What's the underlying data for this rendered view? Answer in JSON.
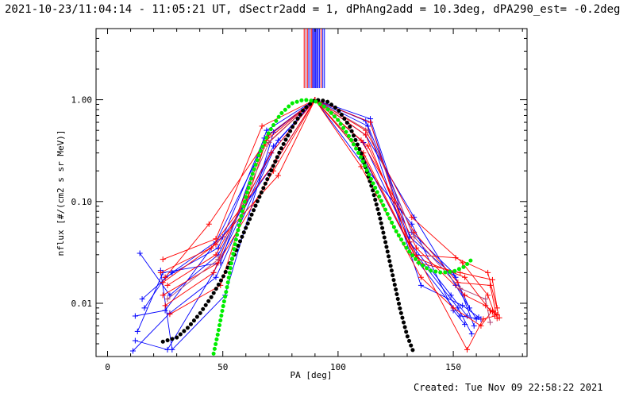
{
  "header": {
    "title": "2021-10-23/11:04:14 - 11:05:21 UT, dSectr2add = 1, dPhAng2add = 10.3deg, dPA290_est= -0.2deg"
  },
  "footer": {
    "created": "Created: Tue Nov 09 22:58:22 2021"
  },
  "chart_data": {
    "type": "line",
    "title": "2021-10-23/11:04:14 - 11:05:21 UT, dSectr2add = 1, dPhAng2add = 10.3deg, dPA290_est= -0.2deg",
    "xlabel": "PA [deg]",
    "ylabel": "nflux [#/(cm2 s sr MeV)]",
    "xlim": [
      -5,
      182
    ],
    "ylim": [
      0.003,
      5
    ],
    "yscale": "log",
    "x_ticks": [
      0,
      50,
      100,
      150
    ],
    "x_tick_labels": [
      "0",
      "50",
      "100",
      "150"
    ],
    "y_ticks": [
      0.01,
      0.1,
      1.0
    ],
    "y_tick_labels": [
      "0.01",
      "0.10",
      "1.00"
    ],
    "grid": false,
    "colors": {
      "blue": "#0000ff",
      "red": "#ff0000",
      "purple": "#b04070",
      "green": "#00ee00",
      "black": "#000000"
    },
    "vertical_lines": {
      "y_from": 1.3,
      "y_to": 5,
      "lines": [
        {
          "x": 85.3,
          "color": "#ff0000"
        },
        {
          "x": 86.0,
          "color": "#b04070"
        },
        {
          "x": 86.7,
          "color": "#ff0000"
        },
        {
          "x": 87.3,
          "color": "#0000ff"
        },
        {
          "x": 88.0,
          "color": "#b04070"
        },
        {
          "x": 88.6,
          "color": "#ff0000"
        },
        {
          "x": 89.0,
          "color": "#0000ff"
        },
        {
          "x": 89.5,
          "color": "#0000ff"
        },
        {
          "x": 90.0,
          "color": "#0000ff"
        },
        {
          "x": 90.4,
          "color": "#0000ff"
        },
        {
          "x": 90.9,
          "color": "#0000ff"
        },
        {
          "x": 91.4,
          "color": "#0000ff"
        },
        {
          "x": 92.0,
          "color": "#0000ff"
        },
        {
          "x": 92.7,
          "color": "#ff0000"
        },
        {
          "x": 93.4,
          "color": "#0000ff"
        },
        {
          "x": 94.1,
          "color": "#0000ff"
        }
      ]
    },
    "series": [
      {
        "color": "#0000ff",
        "x": [
          12,
          25,
          47,
          70,
          90,
          113,
          132,
          150,
          157
        ],
        "y": [
          0.0075,
          0.0085,
          0.04,
          0.45,
          1.0,
          0.55,
          0.05,
          0.02,
          0.009
        ]
      },
      {
        "color": "#0000ff",
        "x": [
          14,
          27,
          48,
          72,
          90,
          112,
          133,
          151,
          160
        ],
        "y": [
          0.031,
          0.012,
          0.03,
          0.35,
          1.0,
          0.45,
          0.07,
          0.015,
          0.007
        ]
      },
      {
        "color": "#0000ff",
        "x": [
          13,
          24,
          49,
          69,
          90,
          114,
          131,
          149,
          156
        ],
        "y": [
          0.0053,
          0.02,
          0.025,
          0.5,
          1.0,
          0.6,
          0.04,
          0.012,
          0.0075
        ]
      },
      {
        "color": "#0000ff",
        "x": [
          12,
          26,
          46,
          71,
          90,
          111,
          134,
          152,
          158
        ],
        "y": [
          0.0043,
          0.0035,
          0.02,
          0.3,
          1.0,
          0.38,
          0.03,
          0.009,
          0.005
        ]
      },
      {
        "color": "#0000ff",
        "x": [
          15,
          28,
          50,
          73,
          90,
          110,
          135,
          153,
          162
        ],
        "y": [
          0.011,
          0.02,
          0.045,
          0.25,
          1.0,
          0.3,
          0.025,
          0.0075,
          0.007
        ]
      },
      {
        "color": "#0000ff",
        "x": [
          11,
          27,
          47,
          74,
          90,
          113,
          132,
          150,
          155
        ],
        "y": [
          0.0034,
          0.008,
          0.018,
          0.4,
          1.0,
          0.2,
          0.06,
          0.0085,
          0.0062
        ]
      },
      {
        "color": "#0000ff",
        "x": [
          16,
          25,
          48,
          68,
          90,
          114,
          131,
          151,
          159
        ],
        "y": [
          0.009,
          0.018,
          0.035,
          0.42,
          1.0,
          0.65,
          0.045,
          0.018,
          0.006
        ]
      },
      {
        "color": "#0000ff",
        "x": [
          23,
          28,
          51,
          72,
          90,
          112,
          136,
          154,
          161
        ],
        "y": [
          0.021,
          0.0035,
          0.012,
          0.48,
          1.0,
          0.62,
          0.015,
          0.0095,
          0.0073
        ]
      },
      {
        "color": "#ff0000",
        "x": [
          24,
          47,
          67,
          90,
          112,
          132,
          154,
          165,
          168
        ],
        "y": [
          0.027,
          0.043,
          0.55,
          1.0,
          0.5,
          0.07,
          0.025,
          0.012,
          0.0078
        ]
      },
      {
        "color": "#ff0000",
        "x": [
          25,
          44,
          69,
          90,
          110,
          133,
          152,
          166,
          169
        ],
        "y": [
          0.018,
          0.06,
          0.4,
          1.0,
          0.4,
          0.05,
          0.016,
          0.015,
          0.0071
        ]
      },
      {
        "color": "#ff0000",
        "x": [
          26,
          47,
          71,
          90,
          113,
          134,
          155,
          164,
          167
        ],
        "y": [
          0.015,
          0.03,
          0.3,
          1.0,
          0.35,
          0.035,
          0.012,
          0.0095,
          0.0083
        ]
      },
      {
        "color": "#ff0000",
        "x": [
          24,
          48,
          72,
          90,
          111,
          135,
          153,
          167,
          169
        ],
        "y": [
          0.012,
          0.025,
          0.2,
          1.0,
          0.28,
          0.025,
          0.02,
          0.017,
          0.009
        ]
      },
      {
        "color": "#ff0000",
        "x": [
          25,
          46,
          70,
          90,
          112,
          131,
          156,
          163,
          168
        ],
        "y": [
          0.0095,
          0.02,
          0.45,
          1.0,
          0.45,
          0.04,
          0.0035,
          0.007,
          0.0075
        ]
      },
      {
        "color": "#ff0000",
        "x": [
          27,
          49,
          68,
          90,
          114,
          132,
          151,
          165,
          170
        ],
        "y": [
          0.0078,
          0.015,
          0.35,
          1.0,
          0.6,
          0.03,
          0.028,
          0.02,
          0.0072
        ]
      },
      {
        "color": "#ff0000",
        "x": [
          23,
          45,
          73,
          90,
          110,
          136,
          150,
          162,
          167
        ],
        "y": [
          0.02,
          0.035,
          0.25,
          1.0,
          0.22,
          0.018,
          0.009,
          0.006,
          0.0085
        ]
      },
      {
        "color": "#b04070",
        "x": [
          26,
          48,
          70,
          90,
          113,
          133,
          153,
          164,
          166
        ],
        "y": [
          0.011,
          0.027,
          0.38,
          1.0,
          0.5,
          0.045,
          0.014,
          0.011,
          0.0065
        ]
      },
      {
        "color": "#ff0000",
        "x": [
          24,
          47,
          74,
          90,
          111,
          134,
          155,
          166,
          169
        ],
        "y": [
          0.016,
          0.038,
          0.18,
          1.0,
          0.3,
          0.028,
          0.018,
          0.0085,
          0.0077
        ]
      }
    ],
    "fits": [
      {
        "color": "#000000",
        "x": [
          24,
          30,
          35,
          40,
          45,
          50,
          55,
          60,
          65,
          70,
          75,
          80,
          85,
          90,
          95,
          100,
          105,
          110,
          115,
          118,
          121,
          124,
          127,
          130,
          133
        ],
        "y": [
          0.0042,
          0.0046,
          0.0058,
          0.0079,
          0.0115,
          0.018,
          0.03,
          0.055,
          0.1,
          0.18,
          0.32,
          0.53,
          0.8,
          1.0,
          0.97,
          0.8,
          0.55,
          0.3,
          0.13,
          0.072,
          0.036,
          0.0175,
          0.0086,
          0.0048,
          0.0032
        ]
      },
      {
        "color": "#00ee00",
        "x": [
          46,
          48,
          50,
          52,
          54,
          56,
          58,
          60,
          63,
          66,
          70,
          75,
          80,
          85,
          90,
          95,
          100,
          105,
          110,
          115,
          120,
          125,
          130,
          135,
          140,
          145,
          150,
          155,
          158
        ],
        "y": [
          0.0032,
          0.0052,
          0.009,
          0.015,
          0.027,
          0.045,
          0.072,
          0.11,
          0.19,
          0.3,
          0.48,
          0.72,
          0.92,
          1.0,
          0.97,
          0.83,
          0.63,
          0.43,
          0.27,
          0.155,
          0.088,
          0.052,
          0.034,
          0.025,
          0.021,
          0.02,
          0.0205,
          0.023,
          0.027
        ]
      }
    ]
  }
}
